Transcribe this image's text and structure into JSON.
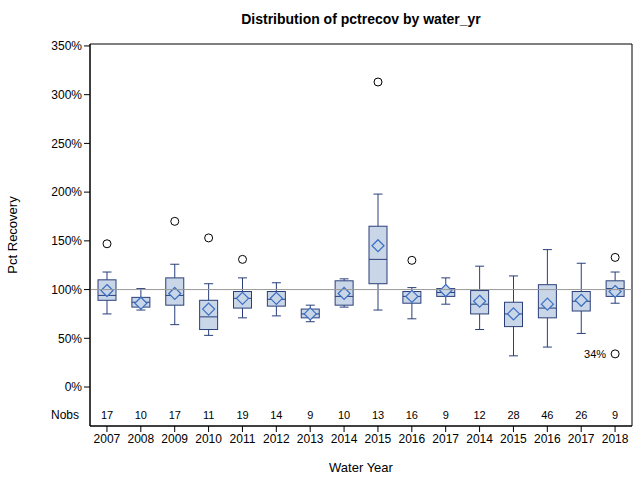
{
  "chart_data": {
    "type": "boxplot",
    "title": "Distribution of pctrecov by water_yr",
    "x_label": "Water Year",
    "y_label": "Pct Recovery",
    "categories": [
      "2007",
      "2008",
      "2009",
      "2010",
      "2011",
      "2012",
      "2013",
      "2014",
      "2015",
      "2016",
      "2017",
      "2014",
      "2015",
      "2016",
      "2017",
      "2018"
    ],
    "boxes": [
      {
        "min": 75,
        "q1": 89,
        "median": 94,
        "q3": 110,
        "max": 118,
        "mean": 99,
        "outliers": [
          147
        ],
        "nobs": 17
      },
      {
        "min": 79,
        "q1": 82,
        "median": 87,
        "q3": 92,
        "max": 101,
        "mean": 86,
        "outliers": [],
        "nobs": 10
      },
      {
        "min": 64,
        "q1": 84,
        "median": 94,
        "q3": 112,
        "max": 126,
        "mean": 96,
        "outliers": [
          170
        ],
        "nobs": 17
      },
      {
        "min": 53,
        "q1": 59,
        "median": 72,
        "q3": 89,
        "max": 106,
        "mean": 80,
        "outliers": [
          153
        ],
        "nobs": 11
      },
      {
        "min": 71,
        "q1": 81,
        "median": 91,
        "q3": 98,
        "max": 112,
        "mean": 91,
        "outliers": [
          131
        ],
        "nobs": 19
      },
      {
        "min": 73,
        "q1": 83,
        "median": 90,
        "q3": 98,
        "max": 107,
        "mean": 91,
        "outliers": [],
        "nobs": 14
      },
      {
        "min": 67,
        "q1": 71,
        "median": 75,
        "q3": 80,
        "max": 84,
        "mean": 75,
        "outliers": [],
        "nobs": 9
      },
      {
        "min": 82,
        "q1": 84,
        "median": 93,
        "q3": 109,
        "max": 111,
        "mean": 96,
        "outliers": [],
        "nobs": 10
      },
      {
        "min": 79,
        "q1": 106,
        "median": 131,
        "q3": 165,
        "max": 198,
        "mean": 145,
        "outliers": [
          313
        ],
        "nobs": 13
      },
      {
        "min": 70,
        "q1": 86,
        "median": 93,
        "q3": 98,
        "max": 102,
        "mean": 93,
        "outliers": [
          130
        ],
        "nobs": 16
      },
      {
        "min": 85,
        "q1": 93,
        "median": 97,
        "q3": 101,
        "max": 112,
        "mean": 99,
        "outliers": [],
        "nobs": 9
      },
      {
        "min": 59,
        "q1": 75,
        "median": 85,
        "q3": 99,
        "max": 124,
        "mean": 88,
        "outliers": [],
        "nobs": 12
      },
      {
        "min": 32,
        "q1": 62,
        "median": 75,
        "q3": 87,
        "max": 114,
        "mean": 75,
        "outliers": [],
        "nobs": 28
      },
      {
        "min": 41,
        "q1": 71,
        "median": 81,
        "q3": 105,
        "max": 141,
        "mean": 85,
        "outliers": [],
        "nobs": 46
      },
      {
        "min": 55,
        "q1": 78,
        "median": 88,
        "q3": 98,
        "max": 127,
        "mean": 89,
        "outliers": [],
        "nobs": 26
      },
      {
        "min": 86,
        "q1": 93,
        "median": 101,
        "q3": 109,
        "max": 118,
        "mean": 98,
        "outliers": [
          133,
          34
        ],
        "nobs": 9
      }
    ],
    "nobs_label": "Nobs",
    "reference_line": 100,
    "annotations": [
      {
        "text": "34%",
        "category_index": 15,
        "value": 34
      }
    ],
    "color": "#2a3f7a",
    "ylim": [
      -40,
      352
    ],
    "yticks": [
      {
        "value": 0,
        "label": "0%"
      },
      {
        "value": 50,
        "label": "50%"
      },
      {
        "value": 100,
        "label": "100%"
      },
      {
        "value": 150,
        "label": "150%"
      },
      {
        "value": 200,
        "label": "200%"
      },
      {
        "value": 250,
        "label": "250%"
      },
      {
        "value": 300,
        "label": "300%"
      },
      {
        "value": 350,
        "label": "350%"
      }
    ]
  }
}
